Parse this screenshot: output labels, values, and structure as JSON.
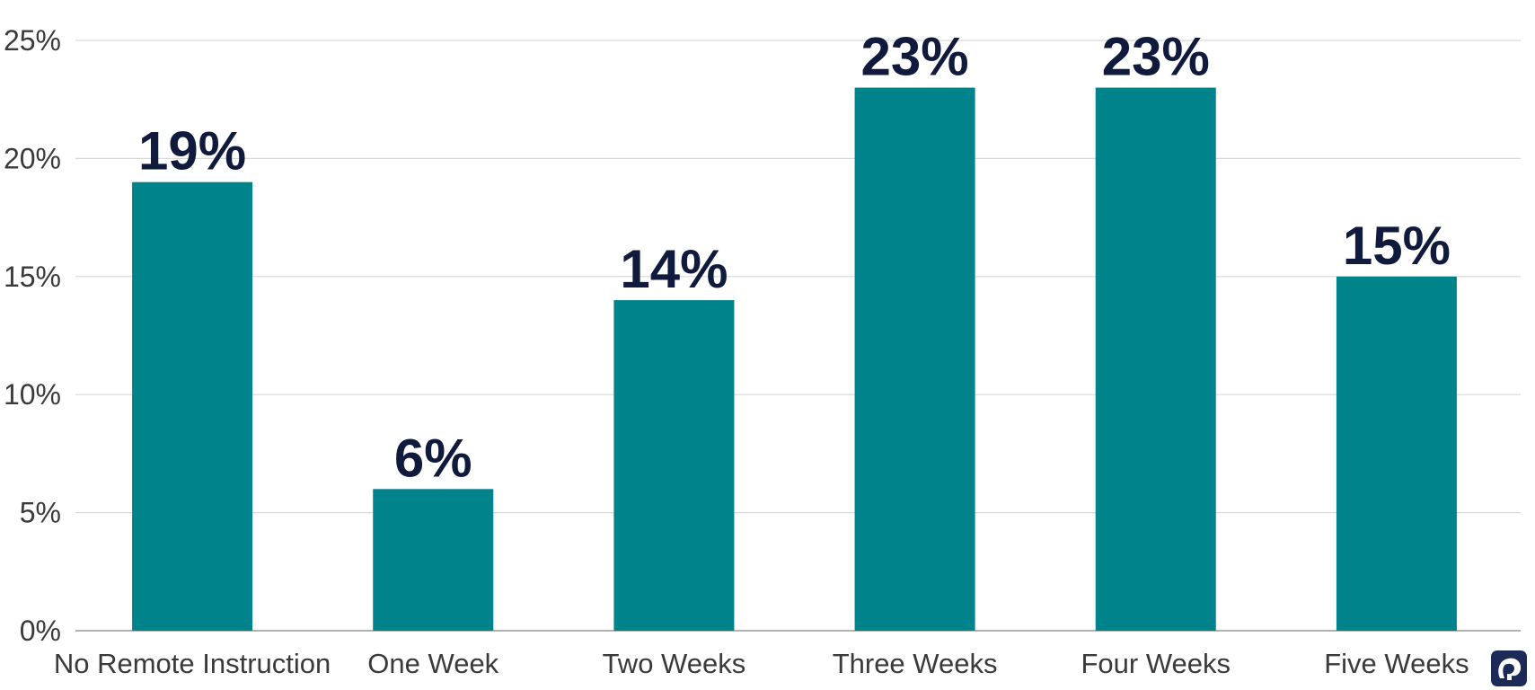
{
  "chart_data": {
    "type": "bar",
    "title": "",
    "xlabel": "",
    "ylabel": "",
    "categories": [
      "No Remote Instruction",
      "One Week",
      "Two Weeks",
      "Three Weeks",
      "Four Weeks",
      "Five Weeks"
    ],
    "values": [
      19,
      6,
      14,
      23,
      23,
      15
    ],
    "data_labels": [
      "19%",
      "6%",
      "14%",
      "23%",
      "23%",
      "15%"
    ],
    "ylim": [
      0,
      25
    ],
    "yticks": [
      0,
      5,
      10,
      15,
      20,
      25
    ],
    "ytick_labels": [
      "0%",
      "5%",
      "10%",
      "15%",
      "20%",
      "25%"
    ],
    "grid": true,
    "legend": "none",
    "bar_color": "#00838a",
    "label_color": "#101a3c"
  },
  "logo": {
    "name": "elephant-logo-icon",
    "color": "#1b2a57"
  }
}
